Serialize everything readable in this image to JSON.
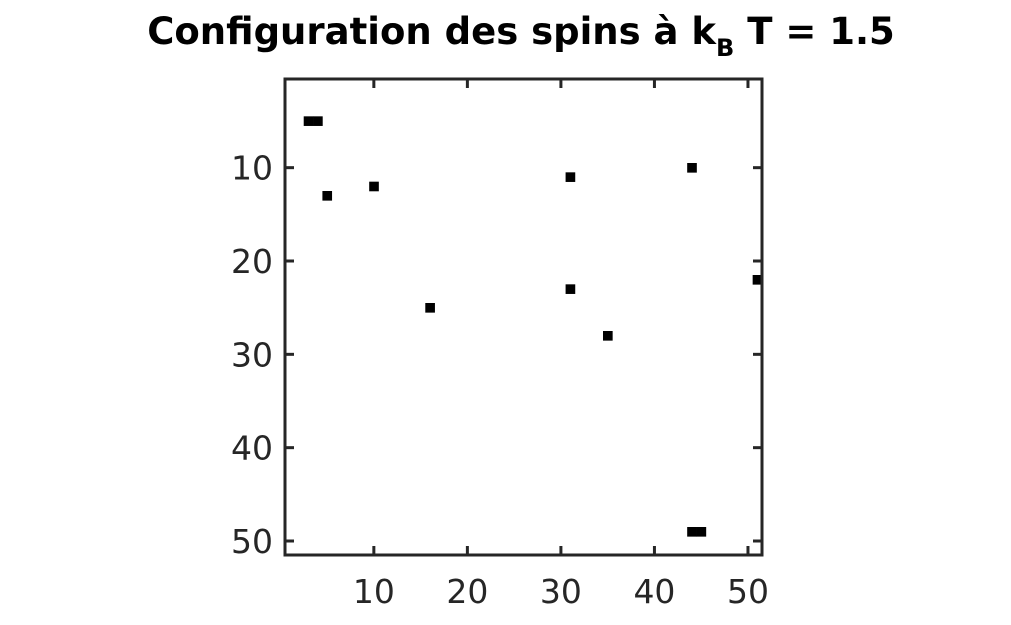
{
  "chart_data": {
    "type": "heatmap",
    "title": {
      "prefix": "Configuration des spins à k",
      "subscript": "B",
      "suffix": " T = 1.5"
    },
    "xlabel": "",
    "ylabel": "",
    "xlim": [
      0.5,
      51.5
    ],
    "ylim": [
      0.5,
      51.5
    ],
    "y_reversed": true,
    "grid": false,
    "x_ticks": [
      10,
      20,
      30,
      40,
      50
    ],
    "y_ticks": [
      10,
      20,
      30,
      40,
      50
    ],
    "colors": {
      "spin_down": "#000000",
      "spin_up": "#ffffff",
      "axes": "#262626"
    },
    "dark_cells": [
      {
        "x": 3,
        "y": 5
      },
      {
        "x": 4,
        "y": 5
      },
      {
        "x": 5,
        "y": 13
      },
      {
        "x": 10,
        "y": 12
      },
      {
        "x": 16,
        "y": 25
      },
      {
        "x": 31,
        "y": 11
      },
      {
        "x": 31,
        "y": 23
      },
      {
        "x": 35,
        "y": 28
      },
      {
        "x": 44,
        "y": 10
      },
      {
        "x": 51,
        "y": 22
      },
      {
        "x": 44,
        "y": 49
      },
      {
        "x": 45,
        "y": 49
      }
    ]
  }
}
